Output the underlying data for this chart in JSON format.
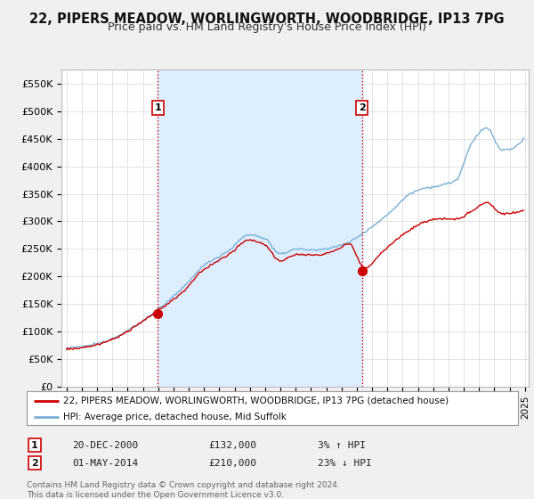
{
  "title": "22, PIPERS MEADOW, WORLINGWORTH, WOODBRIDGE, IP13 7PG",
  "subtitle": "Price paid vs. HM Land Registry's House Price Index (HPI)",
  "title_fontsize": 10.5,
  "subtitle_fontsize": 9,
  "ylabel_ticks": [
    "£0",
    "£50K",
    "£100K",
    "£150K",
    "£200K",
    "£250K",
    "£300K",
    "£350K",
    "£400K",
    "£450K",
    "£500K",
    "£550K"
  ],
  "ytick_vals": [
    0,
    50000,
    100000,
    150000,
    200000,
    250000,
    300000,
    350000,
    400000,
    450000,
    500000,
    550000
  ],
  "ylim": [
    0,
    575000
  ],
  "hpi_color": "#7ab0d4",
  "price_color": "#cc0000",
  "vline_color": "#cc0000",
  "background_color": "#f0f0f0",
  "plot_background": "#ffffff",
  "shading_color": "#ddeeff",
  "legend_label_price": "22, PIPERS MEADOW, WORLINGWORTH, WOODBRIDGE, IP13 7PG (detached house)",
  "legend_label_hpi": "HPI: Average price, detached house, Mid Suffolk",
  "sale1_date_num": [
    2000,
    12,
    20
  ],
  "sale1_price": 132000,
  "sale1_label": "1",
  "sale2_date_num": [
    2014,
    5,
    1
  ],
  "sale2_price": 210000,
  "sale2_label": "2",
  "sale1_note_col1": "20-DEC-2000",
  "sale1_note_col2": "£132,000",
  "sale1_note_col3": "3% ↑ HPI",
  "sale2_note_col1": "01-MAY-2014",
  "sale2_note_col2": "£210,000",
  "sale2_note_col3": "23% ↓ HPI",
  "footer": "Contains HM Land Registry data © Crown copyright and database right 2024.\nThis data is licensed under the Open Government Licence v3.0."
}
